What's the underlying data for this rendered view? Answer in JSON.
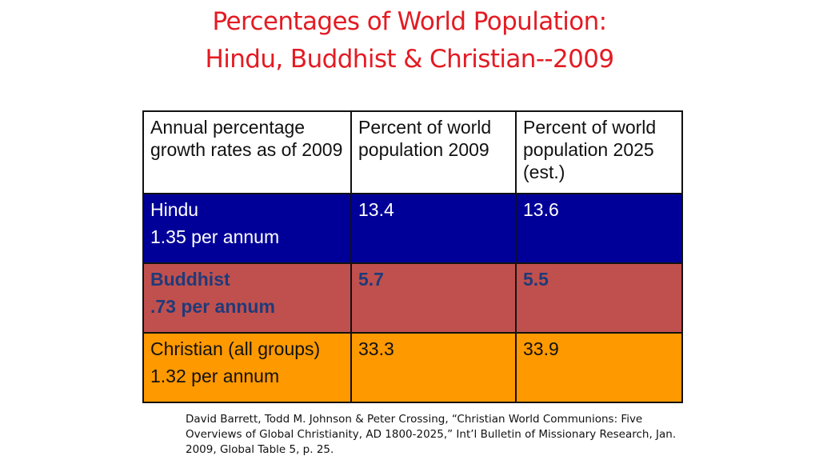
{
  "title": {
    "line1": "Percentages of World Population:",
    "line2": "Hindu, Buddhist & Christian--2009"
  },
  "table": {
    "headers": [
      "Annual percentage growth rates as of 2009",
      "Percent of world population 2009",
      "Percent of world population 2025 (est.)"
    ],
    "rows": [
      {
        "group": "Hindu",
        "rate": "1.35 per annum",
        "pct_2009": "13.4",
        "pct_2025": "13.6"
      },
      {
        "group": "Buddhist",
        "rate": ".73 per annum",
        "pct_2009": "5.7",
        "pct_2025": "5.5"
      },
      {
        "group": "Christian (all groups)",
        "rate": "1.32 per annum",
        "pct_2009": "33.3",
        "pct_2025": "33.9"
      }
    ]
  },
  "citation": "David Barrett, Todd M. Johnson & Peter Crossing,  “Christian World Communions: Five Overviews of Global Christianity, AD 1800-2025,” Int’l Bulletin of Missionary Research,  Jan. 2009,  Global Table 5, p. 25.",
  "colors": {
    "title": "#e31b23",
    "hindu_row": "#000099",
    "buddhist_row": "#c0504d",
    "buddhist_text": "#1f3a7a",
    "christian_row": "#ff9900"
  }
}
